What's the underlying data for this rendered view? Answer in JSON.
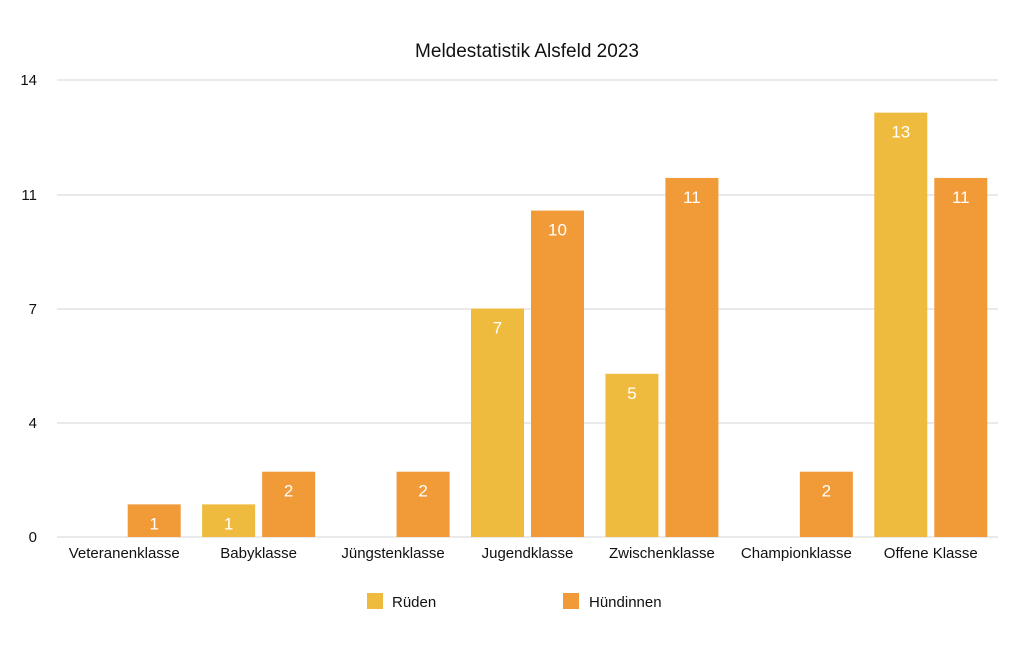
{
  "chart_data": {
    "type": "bar",
    "title": "Meldestatistik Alsfeld 2023",
    "xlabel": "",
    "ylabel": "",
    "ylim": [
      0,
      14
    ],
    "yticks": [
      0,
      4,
      7,
      11,
      14
    ],
    "categories": [
      "Veteranenklasse",
      "Babyklasse",
      "Jüngstenklasse",
      "Jugendklasse",
      "Zwischenklasse",
      "Championklasse",
      "Offene Klasse"
    ],
    "series": [
      {
        "name": "Rüden",
        "color": "#EFBB3F",
        "values": [
          null,
          1,
          null,
          7,
          5,
          null,
          13
        ],
        "labels": [
          "",
          "1",
          "",
          "7",
          "5",
          "",
          "13"
        ]
      },
      {
        "name": "Hündinnen",
        "color": "#F09A38",
        "values": [
          1,
          2,
          2,
          10,
          11,
          2,
          11
        ],
        "labels": [
          "1",
          "2",
          "2",
          "10",
          "11",
          "2",
          "11"
        ]
      }
    ],
    "display_values": {
      "Rüden": [
        null,
        1,
        null,
        7,
        5,
        null,
        13
      ],
      "Hündinnen": [
        1,
        2,
        2,
        10,
        11,
        2,
        11
      ]
    },
    "grid": true,
    "legend": "bottom"
  }
}
